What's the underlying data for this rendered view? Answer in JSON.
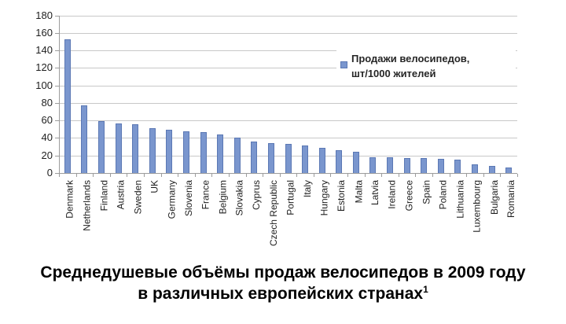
{
  "chart_data": {
    "type": "bar",
    "categories": [
      "Denmark",
      "Netherlands",
      "Finland",
      "Austria",
      "Sweden",
      "UK",
      "Germany",
      "Slovenia",
      "France",
      "Belgium",
      "Slovakia",
      "Cyprus",
      "Czech Republic",
      "Portugal",
      "Italy",
      "Hungary",
      "Estonia",
      "Malta",
      "Latvia",
      "Ireland",
      "Greece",
      "Spain",
      "Poland",
      "Lithuania",
      "Luxembourg",
      "Bulgaria",
      "Romania"
    ],
    "series": [
      {
        "name": "Продажи велосипедов, шт/1000 жителей",
        "values": [
          153,
          77,
          59,
          57,
          56,
          51,
          49,
          48,
          47,
          44,
          40,
          36,
          34,
          33,
          31,
          29,
          26,
          24,
          18,
          18,
          17,
          17,
          16,
          15,
          10,
          8,
          6
        ]
      }
    ],
    "ylim": [
      0,
      180
    ],
    "yticks": [
      0,
      20,
      40,
      60,
      80,
      100,
      120,
      140,
      160,
      180
    ],
    "grid": "horizontal",
    "legend_position": "inside-top-right",
    "xlabel": "",
    "ylabel": "",
    "bar_color": "#7a96ce",
    "bar_border_color": "#5b78b4",
    "gridline_color": "#c8c8c8",
    "axis_color": "#9c9c9c"
  },
  "legend": {
    "line1": "Продажи велосипедов,",
    "line2": "шт/1000 жителей"
  },
  "title": {
    "line1": "Среднедушевые объёмы продаж велосипедов в 2009 году",
    "line2": "в различных европейских странах",
    "superscript": "1"
  }
}
